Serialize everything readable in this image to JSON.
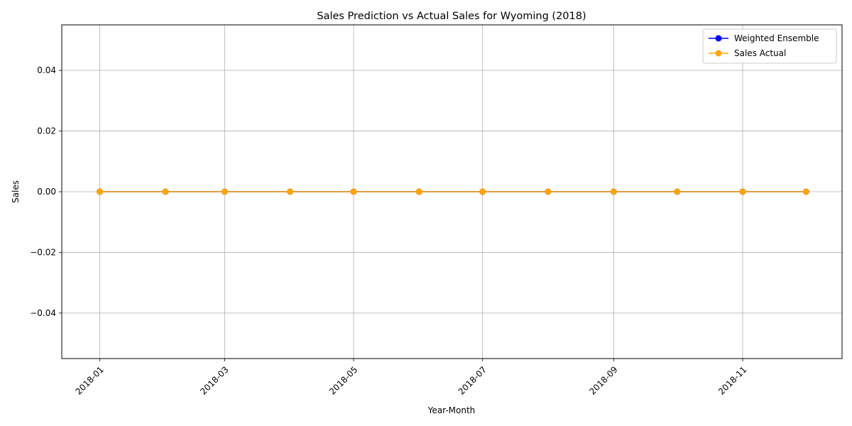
{
  "chart_data": {
    "type": "line",
    "title": "Sales Prediction vs Actual Sales for Wyoming (2018)",
    "xlabel": "Year-Month",
    "ylabel": "Sales",
    "x": [
      "2018-01-01",
      "2018-02-01",
      "2018-03-01",
      "2018-04-01",
      "2018-05-01",
      "2018-06-01",
      "2018-07-01",
      "2018-08-01",
      "2018-09-01",
      "2018-10-01",
      "2018-11-01",
      "2018-12-01"
    ],
    "x_ticks": [
      "2018-01",
      "2018-03",
      "2018-05",
      "2018-07",
      "2018-09",
      "2018-11"
    ],
    "y_ticks": [
      "0.04",
      "0.02",
      "0.00",
      "−0.02",
      "−0.04"
    ],
    "y_tick_values": [
      0.04,
      0.02,
      0.0,
      -0.02,
      -0.04
    ],
    "ylim": [
      -0.055,
      0.055
    ],
    "xlim": [
      "2017-12-14",
      "2018-12-18"
    ],
    "grid": true,
    "legend_position": "upper right",
    "series": [
      {
        "name": "Weighted Ensemble",
        "color": "#0000ff",
        "marker": "circle",
        "values": [
          0,
          0,
          0,
          0,
          0,
          0,
          0,
          0,
          0,
          0,
          0,
          0
        ]
      },
      {
        "name": "Sales Actual",
        "color": "#ffa500",
        "marker": "circle",
        "values": [
          0,
          0,
          0,
          0,
          0,
          0,
          0,
          0,
          0,
          0,
          0,
          0
        ]
      }
    ]
  }
}
